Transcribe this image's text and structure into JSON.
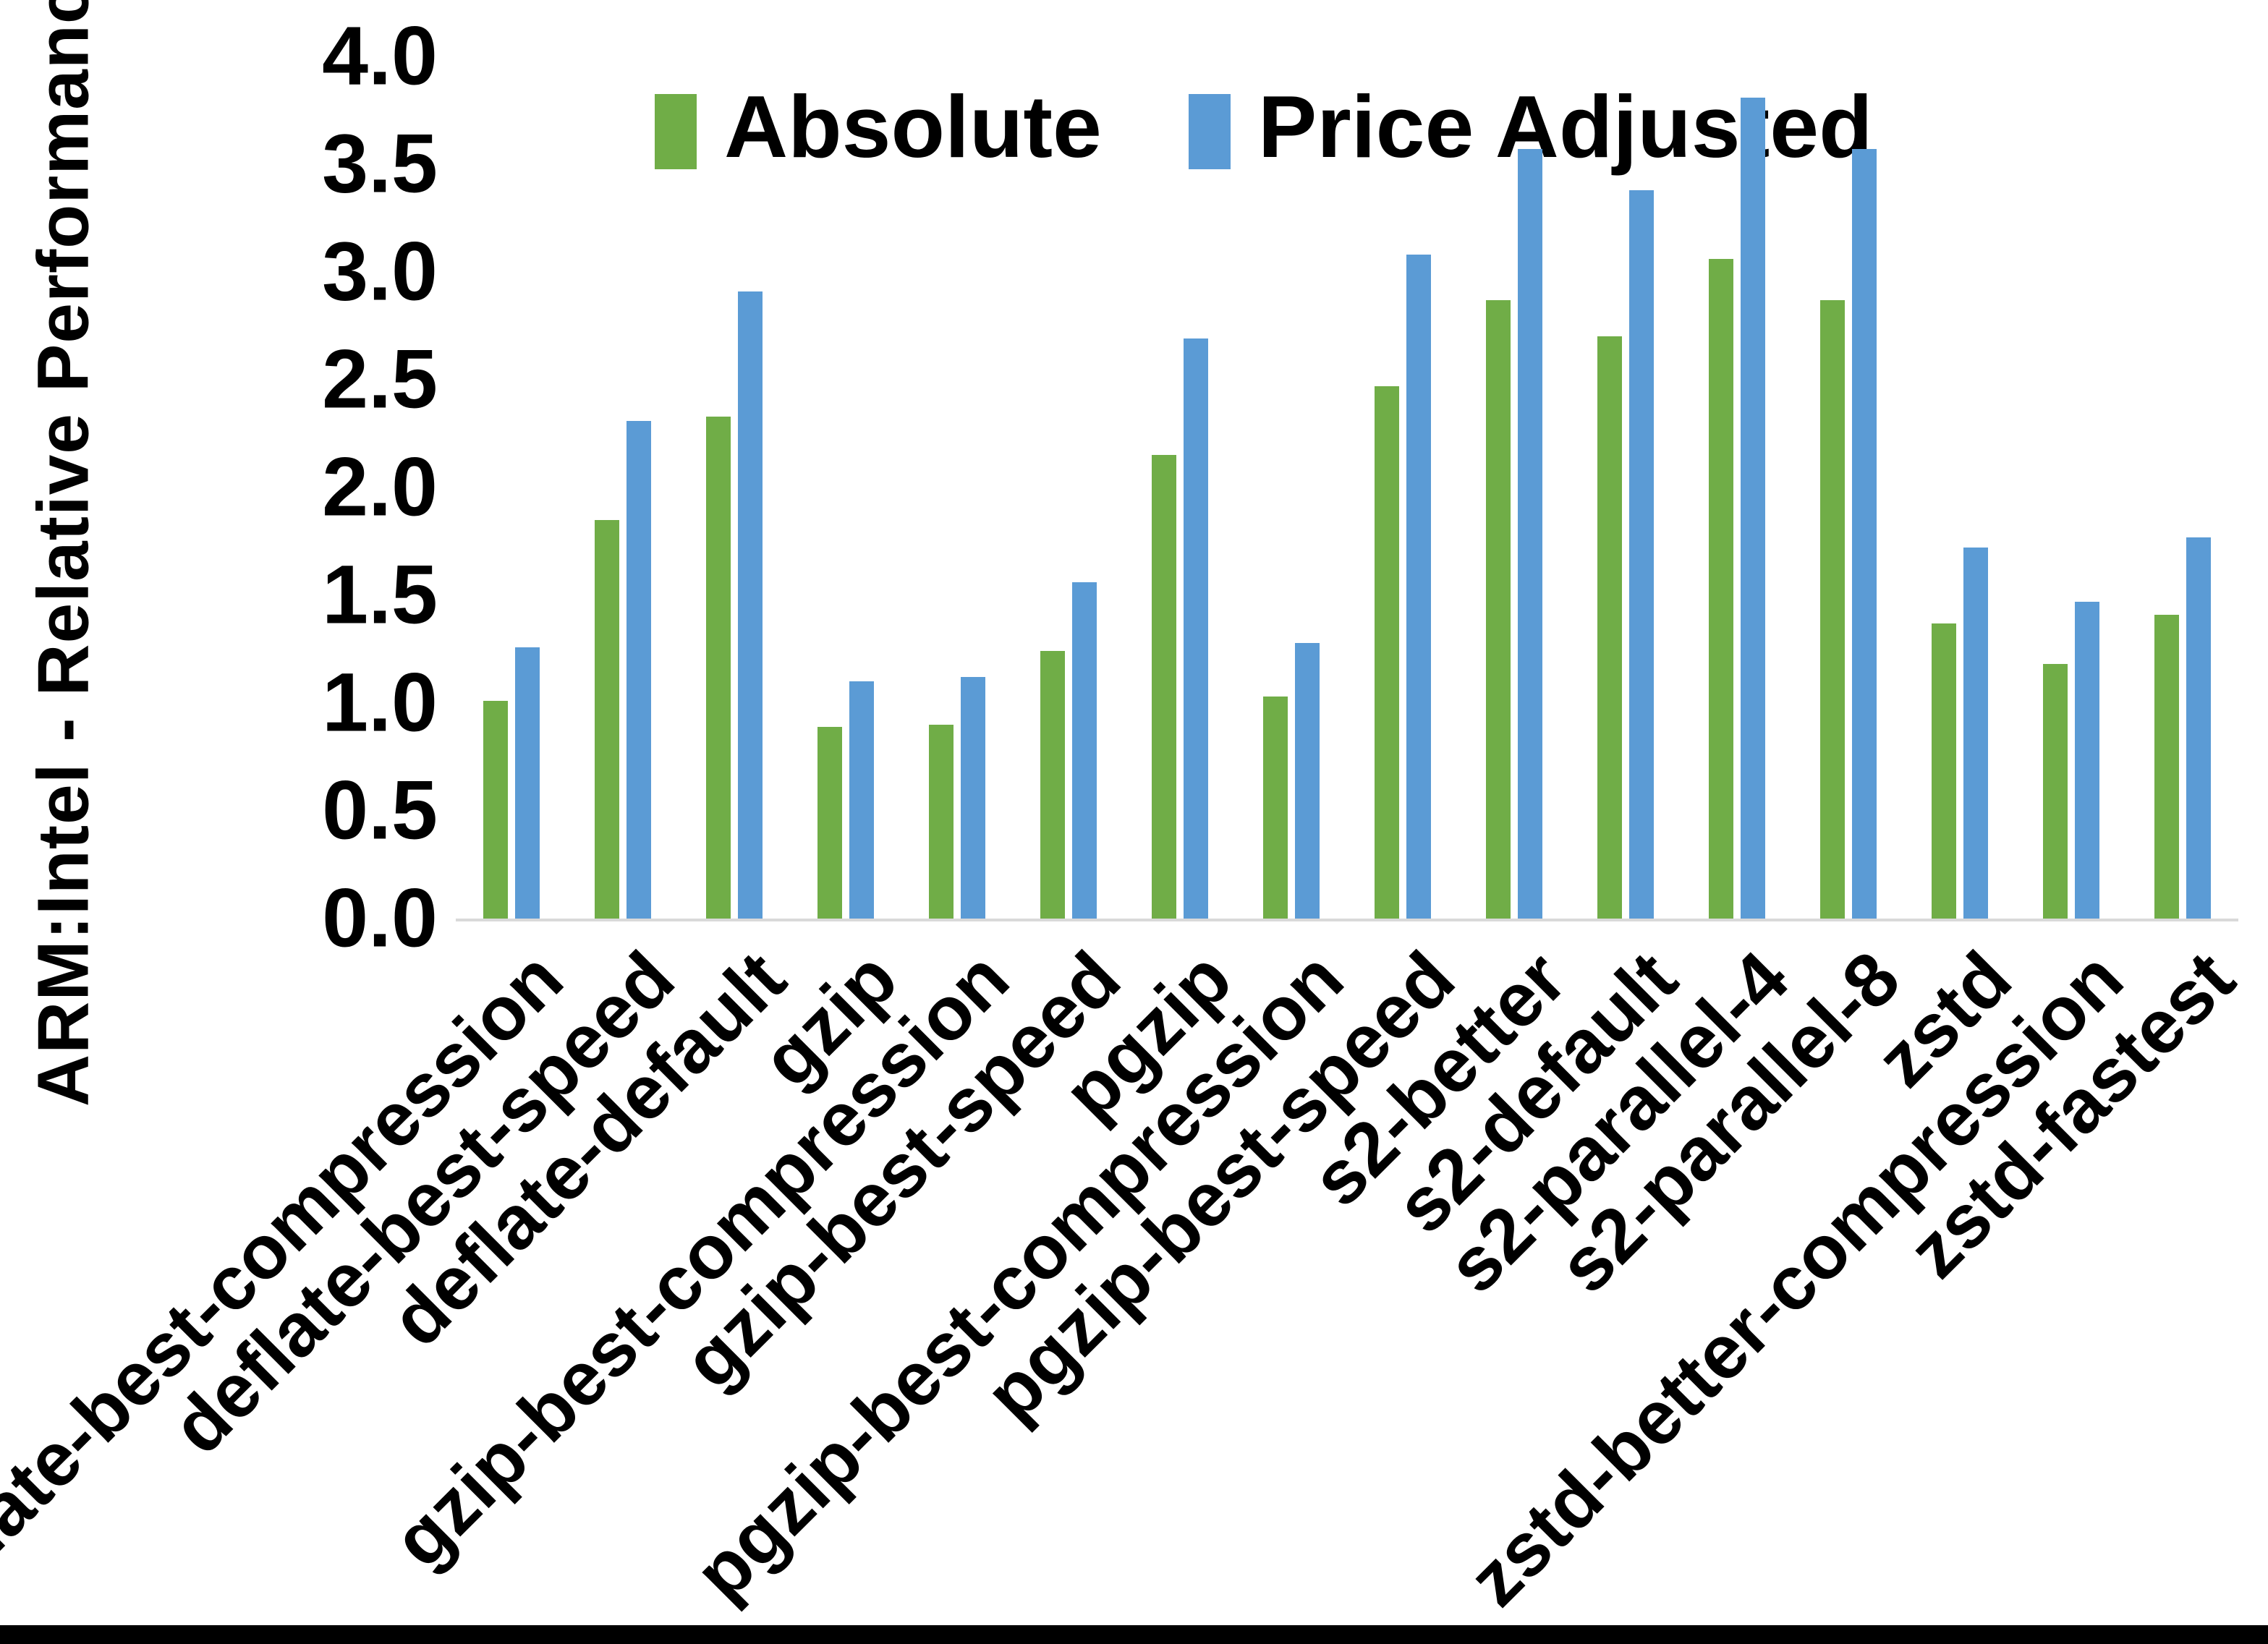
{
  "chart_data": {
    "type": "bar",
    "title": "",
    "xlabel": "",
    "ylabel": "ARM:Intel - Relative Performance",
    "ylim": [
      0.0,
      4.0
    ],
    "ytick_labels": [
      "0.0",
      "0.5",
      "1.0",
      "1.5",
      "2.0",
      "2.5",
      "3.0",
      "3.5",
      "4.0"
    ],
    "grid": false,
    "legend_position": "top",
    "x_label_rotation_deg": 45,
    "categories": [
      "deflate-best-compression",
      "deflate-best-speed",
      "deflate-default",
      "gzip",
      "gzip-best-compression",
      "gzip-best-speed",
      "pgzip",
      "pgzip-best-compression",
      "pgzip-best-speed",
      "s2-better",
      "s2-default",
      "s2-parallel-4",
      "s2-parallel-8",
      "zstd",
      "zstd-better-compression",
      "zstd-fastest"
    ],
    "series": [
      {
        "name": "Absolute",
        "color": "#70AD47",
        "values": [
          1.01,
          1.85,
          2.33,
          0.89,
          0.9,
          1.24,
          2.15,
          1.03,
          2.47,
          2.87,
          2.7,
          3.06,
          2.87,
          1.37,
          1.18,
          1.41
        ]
      },
      {
        "name": "Price Adjusted",
        "color": "#5B9BD5",
        "values": [
          1.26,
          2.31,
          2.91,
          1.1,
          1.12,
          1.56,
          2.69,
          1.28,
          3.08,
          3.57,
          3.38,
          3.81,
          3.57,
          1.72,
          1.47,
          1.77
        ]
      }
    ],
    "colors": {
      "axis_line": "#d9d9d9",
      "text": "#000000",
      "background": "#ffffff",
      "bottom_edge_bar": "#000000"
    }
  }
}
